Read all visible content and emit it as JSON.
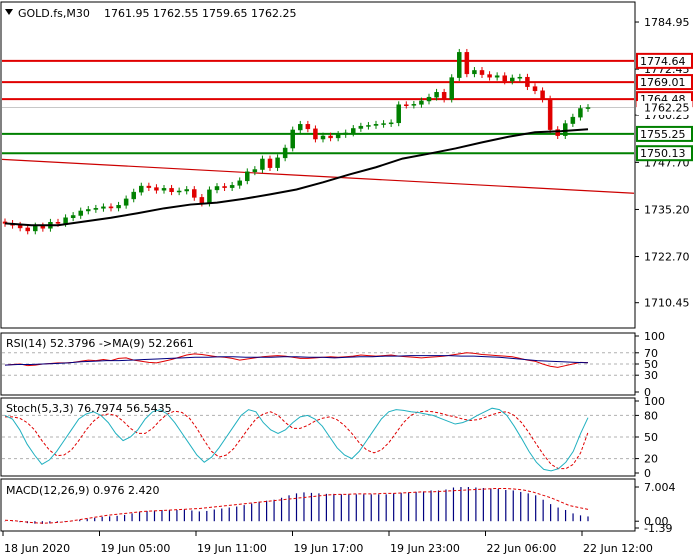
{
  "main": {
    "symbol_label": "GOLD.fs,M30",
    "ohlc": "1761.95 1762.55 1759.65 1762.25",
    "price_ticks": [
      "1784.95",
      "1772.45",
      "1760.25",
      "1747.70",
      "1735.20",
      "1722.70",
      "1710.45"
    ],
    "price_ylim": [
      1704,
      1790
    ],
    "levels": [
      {
        "label": "1774.64",
        "value": 1774.64,
        "color": "#e00000"
      },
      {
        "label": "1769.01",
        "value": 1769.01,
        "color": "#e00000"
      },
      {
        "label": "1764.48",
        "value": 1764.48,
        "color": "#e00000"
      },
      {
        "label": "1755.25",
        "value": 1755.25,
        "color": "#008000"
      },
      {
        "label": "1750.13",
        "value": 1750.13,
        "color": "#008000"
      }
    ],
    "current_price_label": "1762.25",
    "current_price": 1762.25,
    "trendline": {
      "start": 1748.5,
      "end": 1739.5,
      "color": "#cc0000"
    },
    "closes": [
      1731.5,
      1731.0,
      1730.3,
      1729.5,
      1730.8,
      1730.2,
      1731.8,
      1731.5,
      1733.0,
      1733.6,
      1734.8,
      1735.2,
      1735.5,
      1735.9,
      1735.6,
      1736.3,
      1738.0,
      1739.8,
      1741.4,
      1741.0,
      1740.3,
      1740.8,
      1739.9,
      1740.1,
      1740.5,
      1738.4,
      1736.9,
      1740.4,
      1741.3,
      1741.0,
      1741.6,
      1742.8,
      1745.2,
      1745.8,
      1748.6,
      1746.3,
      1748.9,
      1751.5,
      1756.3,
      1757.8,
      1756.6,
      1753.9,
      1754.7,
      1754.2,
      1755.1,
      1755.5,
      1756.7,
      1757.3,
      1757.5,
      1757.8,
      1758.0,
      1758.2,
      1763.0,
      1762.9,
      1763.1,
      1764.0,
      1765.0,
      1766.3,
      1764.5,
      1770.2,
      1776.9,
      1771.2,
      1772.1,
      1771.0,
      1770.3,
      1770.7,
      1769.3,
      1770.1,
      1770.3,
      1767.8,
      1766.7,
      1764.5,
      1756.4,
      1754.8,
      1758.0,
      1759.7,
      1762.0,
      1762.25
    ],
    "ma_line": {
      "values": [
        1731.5,
        1731.0,
        1731.0,
        1732.0,
        1733.0,
        1734.2,
        1735.5,
        1736.5,
        1737.0,
        1738.0,
        1739.2,
        1740.5,
        1742.4,
        1744.5,
        1746.4,
        1748.7,
        1750.0,
        1751.4,
        1753.0,
        1754.5,
        1755.7,
        1756.0,
        1756.5
      ],
      "color": "#000000"
    }
  },
  "rsi": {
    "label": "RSI(14) 52.3796   ->MA(9) 52.2661",
    "ticks": [
      "100",
      "70",
      "50",
      "30",
      "0"
    ],
    "ylim": [
      0,
      100
    ],
    "rsi_values": [
      48,
      49,
      50,
      47,
      48,
      50,
      51,
      52,
      52,
      53,
      55,
      57,
      56,
      58,
      56,
      60,
      61,
      57,
      55,
      53,
      52,
      55,
      58,
      62,
      66,
      68,
      67,
      65,
      63,
      62,
      60,
      57,
      59,
      61,
      63,
      64,
      65,
      64,
      62,
      60,
      60,
      61,
      62,
      63,
      62,
      63,
      64,
      66,
      65,
      64,
      65,
      66,
      64,
      63,
      62,
      61,
      62,
      63,
      64,
      66,
      68,
      70,
      69,
      67,
      66,
      65,
      64,
      63,
      60,
      57,
      55,
      50,
      46,
      44,
      47,
      50,
      53,
      52.38
    ],
    "rsi_color": "#e00000",
    "ma_values": [
      48,
      49,
      49,
      50,
      51,
      52,
      54,
      55,
      56,
      56,
      57,
      58,
      59,
      60,
      61,
      62,
      62,
      63,
      63,
      62,
      62,
      62,
      63,
      63,
      62,
      62,
      61,
      62,
      63,
      63,
      64,
      64,
      65,
      65,
      65,
      65,
      64,
      64,
      63,
      62,
      60,
      58,
      56,
      55,
      54,
      53,
      52.27
    ],
    "ma_color": "#000080"
  },
  "stoch": {
    "label": "Stoch(5,3,3) 76.7974 56.5435",
    "ticks": [
      "100",
      "80",
      "50",
      "20",
      "0"
    ],
    "ylim": [
      0,
      100
    ],
    "k_values": [
      80,
      75,
      60,
      40,
      25,
      12,
      18,
      30,
      45,
      60,
      75,
      82,
      85,
      80,
      70,
      55,
      45,
      50,
      60,
      75,
      85,
      88,
      82,
      70,
      55,
      40,
      25,
      15,
      22,
      35,
      50,
      65,
      80,
      88,
      85,
      70,
      60,
      55,
      60,
      70,
      78,
      80,
      75,
      65,
      50,
      35,
      25,
      20,
      30,
      45,
      60,
      75,
      85,
      88,
      87,
      85,
      84,
      82,
      80,
      76,
      72,
      68,
      70,
      74,
      80,
      85,
      90,
      88,
      80,
      65,
      48,
      30,
      15,
      5,
      3,
      6,
      15,
      30,
      55,
      76.8
    ],
    "k_color": "#20b0c0",
    "d_values": [
      78,
      78,
      76,
      70,
      60,
      45,
      32,
      24,
      25,
      32,
      45,
      60,
      72,
      80,
      82,
      80,
      72,
      62,
      55,
      55,
      62,
      73,
      82,
      86,
      84,
      76,
      62,
      45,
      30,
      22,
      25,
      34,
      48,
      62,
      75,
      82,
      85,
      80,
      70,
      62,
      62,
      66,
      72,
      76,
      78,
      74,
      66,
      55,
      42,
      32,
      28,
      32,
      42,
      56,
      70,
      80,
      85,
      86,
      85,
      83,
      80,
      78,
      75,
      73,
      74,
      77,
      81,
      84,
      85,
      80,
      70,
      56,
      40,
      25,
      12,
      6,
      6,
      12,
      28,
      56.5
    ],
    "d_color": "#e00000"
  },
  "macd": {
    "label": "MACD(12,26,9) 0.976 2.420",
    "ticks": [
      "7.004",
      "0.00",
      "-1.39"
    ],
    "ylim": [
      -1.39,
      7.004
    ],
    "hist": [
      0.05,
      -0.05,
      -0.2,
      -0.4,
      -0.5,
      -0.55,
      -0.45,
      -0.3,
      -0.1,
      0.1,
      0.3,
      0.5,
      0.7,
      0.9,
      1.0,
      1.1,
      1.3,
      1.6,
      1.9,
      2.1,
      2.2,
      2.3,
      2.3,
      2.3,
      2.4,
      2.2,
      2.0,
      2.1,
      2.4,
      2.6,
      2.8,
      3.0,
      3.3,
      3.6,
      4.0,
      4.2,
      4.4,
      4.8,
      5.3,
      5.7,
      5.9,
      5.8,
      5.7,
      5.6,
      5.6,
      5.5,
      5.5,
      5.5,
      5.5,
      5.5,
      5.5,
      5.5,
      5.7,
      5.8,
      5.9,
      6.0,
      6.1,
      6.3,
      6.3,
      6.5,
      6.9,
      7.0,
      7.0,
      6.9,
      6.8,
      6.7,
      6.6,
      6.4,
      6.3,
      6.0,
      5.7,
      5.3,
      4.4,
      3.5,
      2.8,
      2.3,
      1.6,
      1.2,
      0.98
    ],
    "hist_color": "#000080",
    "signal": [
      0.2,
      0.1,
      -0.1,
      -0.3,
      -0.4,
      -0.35,
      -0.2,
      0.0,
      0.3,
      0.6,
      0.9,
      1.2,
      1.4,
      1.6,
      1.8,
      2.0,
      2.1,
      2.2,
      2.3,
      2.4,
      2.5,
      2.6,
      2.8,
      3.0,
      3.2,
      3.4,
      3.6,
      3.8,
      4.0,
      4.2,
      4.4,
      4.6,
      4.8,
      5.0,
      5.2,
      5.4,
      5.5,
      5.5,
      5.6,
      5.6,
      5.6,
      5.7,
      5.7,
      5.8,
      5.9,
      6.0,
      6.0,
      6.1,
      6.2,
      6.3,
      6.4,
      6.5,
      6.6,
      6.7,
      6.7,
      6.6,
      6.4,
      6.0,
      5.4,
      4.8,
      4.0,
      3.2,
      2.8,
      2.42
    ],
    "signal_color": "#e00000"
  },
  "time_axis": {
    "labels": [
      "18 Jun 2020",
      "19 Jun 05:00",
      "19 Jun 11:00",
      "19 Jun 17:00",
      "19 Jun 23:00",
      "22 Jun 06:00",
      "22 Jun 12:00"
    ]
  },
  "colors": {
    "bull": "#008000",
    "bear": "#e00000",
    "grid_dash": "#b0b0b0",
    "frame": "#000000"
  }
}
